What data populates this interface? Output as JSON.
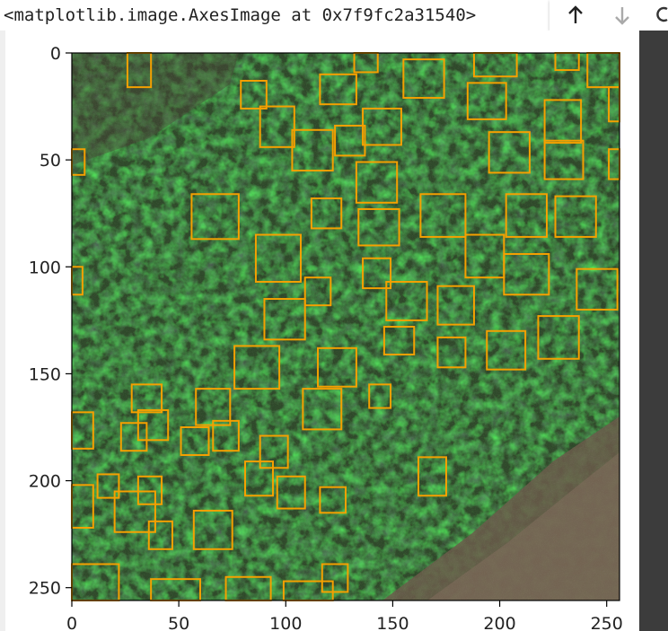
{
  "output": {
    "repr_text": "<matplotlib.image.AxesImage at 0x7f9fc2a31540>"
  },
  "toolbar": {
    "icons": [
      "arrow-up-icon",
      "arrow-down-icon",
      "link-icon"
    ]
  },
  "image_plot": {
    "x_ticks": [
      "0",
      "50",
      "100",
      "150",
      "200",
      "250"
    ],
    "y_ticks": [
      "0",
      "50",
      "100",
      "150",
      "200",
      "250"
    ],
    "x_range": [
      0,
      256
    ],
    "y_range": [
      0,
      256
    ],
    "box_color": "#f5a000",
    "boxes": [
      [
        26,
        0,
        37,
        16
      ],
      [
        132,
        0,
        143,
        9
      ],
      [
        188,
        0,
        208,
        11
      ],
      [
        226,
        0,
        237,
        8
      ],
      [
        241,
        0,
        256,
        16
      ],
      [
        155,
        3,
        174,
        21
      ],
      [
        116,
        10,
        133,
        24
      ],
      [
        79,
        13,
        91,
        26
      ],
      [
        185,
        14,
        203,
        31
      ],
      [
        251,
        16,
        256,
        32
      ],
      [
        88,
        25,
        104,
        44
      ],
      [
        136,
        26,
        154,
        43
      ],
      [
        221,
        22,
        238,
        42
      ],
      [
        123,
        34,
        137,
        48
      ],
      [
        103,
        36,
        122,
        55
      ],
      [
        0,
        45,
        6,
        57
      ],
      [
        195,
        37,
        214,
        56
      ],
      [
        221,
        41,
        239,
        59
      ],
      [
        251,
        45,
        256,
        59
      ],
      [
        133,
        51,
        152,
        70
      ],
      [
        56,
        66,
        78,
        87
      ],
      [
        112,
        68,
        126,
        82
      ],
      [
        163,
        66,
        184,
        86
      ],
      [
        203,
        66,
        222,
        86
      ],
      [
        226,
        67,
        245,
        86
      ],
      [
        134,
        73,
        153,
        90
      ],
      [
        86,
        85,
        107,
        107
      ],
      [
        184,
        85,
        202,
        105
      ],
      [
        202,
        94,
        223,
        113
      ],
      [
        136,
        96,
        149,
        110
      ],
      [
        0,
        100,
        5,
        113
      ],
      [
        109,
        105,
        121,
        118
      ],
      [
        147,
        107,
        166,
        125
      ],
      [
        171,
        109,
        188,
        127
      ],
      [
        236,
        101,
        255,
        120
      ],
      [
        90,
        115,
        109,
        134
      ],
      [
        146,
        128,
        160,
        141
      ],
      [
        218,
        123,
        237,
        143
      ],
      [
        194,
        130,
        212,
        148
      ],
      [
        171,
        133,
        184,
        147
      ],
      [
        76,
        137,
        97,
        157
      ],
      [
        115,
        138,
        133,
        156
      ],
      [
        139,
        155,
        149,
        166
      ],
      [
        28,
        155,
        42,
        168
      ],
      [
        58,
        157,
        74,
        174
      ],
      [
        108,
        157,
        126,
        176
      ],
      [
        0,
        168,
        10,
        185
      ],
      [
        23,
        173,
        35,
        186
      ],
      [
        31,
        167,
        45,
        181
      ],
      [
        66,
        172,
        78,
        186
      ],
      [
        51,
        175,
        64,
        188
      ],
      [
        88,
        179,
        101,
        194
      ],
      [
        162,
        189,
        175,
        207
      ],
      [
        81,
        191,
        94,
        207
      ],
      [
        96,
        198,
        109,
        213
      ],
      [
        12,
        197,
        22,
        208
      ],
      [
        31,
        198,
        42,
        211
      ],
      [
        116,
        203,
        128,
        215
      ],
      [
        0,
        202,
        10,
        222
      ],
      [
        20,
        205,
        39,
        224
      ],
      [
        57,
        214,
        75,
        232
      ],
      [
        36,
        219,
        47,
        232
      ],
      [
        117,
        239,
        129,
        252
      ],
      [
        0,
        239,
        22,
        262
      ],
      [
        37,
        246,
        60,
        268
      ],
      [
        72,
        245,
        93,
        268
      ],
      [
        99,
        247,
        122,
        268
      ]
    ]
  }
}
